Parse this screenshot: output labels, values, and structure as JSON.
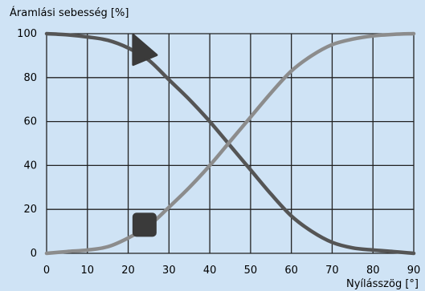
{
  "chart_data": {
    "type": "line",
    "title": "",
    "ylabel": "Áramlási sebesség [%]",
    "xlabel": "Nyílásszög [°]",
    "xlim": [
      0,
      90
    ],
    "ylim": [
      0,
      100
    ],
    "x_ticks": [
      "0",
      "10",
      "20",
      "30",
      "40",
      "50",
      "60",
      "70",
      "80",
      "90"
    ],
    "y_ticks": [
      "0",
      "20",
      "40",
      "60",
      "80",
      "100"
    ],
    "grid": true,
    "series": [
      {
        "color": "#555555",
        "marker": "triangle",
        "x": [
          0,
          5,
          10,
          15,
          20,
          25,
          30,
          35,
          40,
          45,
          50,
          55,
          60,
          65,
          70,
          75,
          80,
          85,
          90
        ],
        "y": [
          100,
          99.5,
          98.5,
          97,
          93.5,
          88,
          79,
          70,
          60,
          49,
          38,
          27,
          17,
          10,
          5,
          2.5,
          1.5,
          0.8,
          0
        ]
      },
      {
        "color": "#8c8c8c",
        "marker": "square",
        "x": [
          0,
          5,
          10,
          15,
          20,
          25,
          30,
          35,
          40,
          45,
          50,
          55,
          60,
          65,
          70,
          75,
          80,
          85,
          90
        ],
        "y": [
          0,
          0.8,
          1.5,
          3,
          7,
          12.5,
          21,
          30,
          40,
          51,
          62,
          73,
          83,
          90,
          95,
          97.5,
          99,
          99.7,
          100
        ]
      }
    ]
  }
}
